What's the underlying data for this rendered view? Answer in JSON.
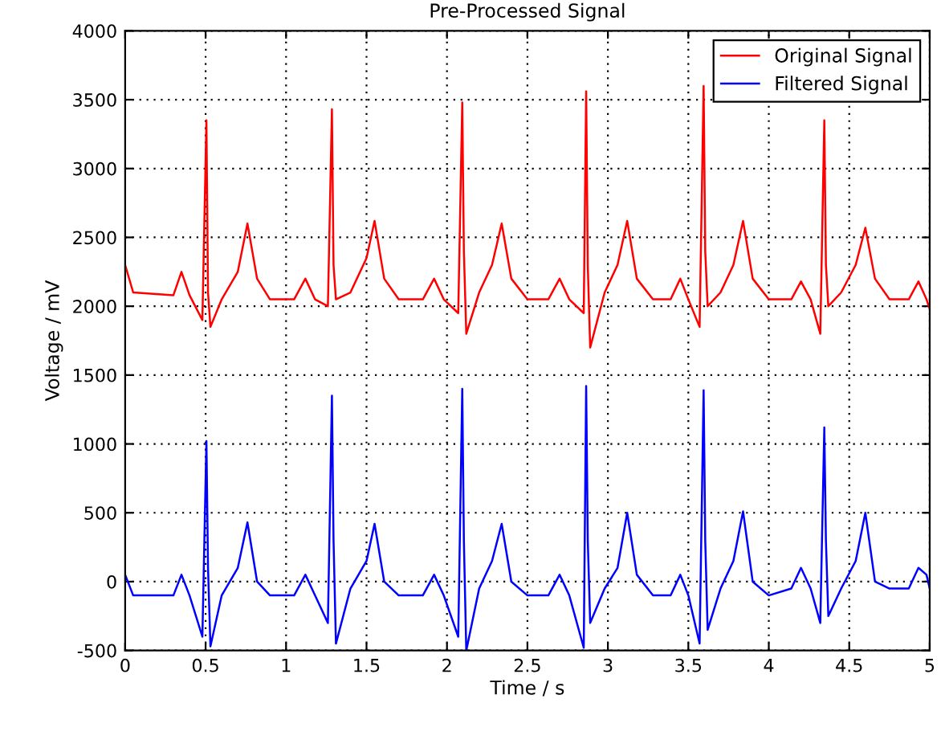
{
  "chart_data": {
    "type": "line",
    "title": "Pre-Processed Signal",
    "xlabel": "Time / s",
    "ylabel": "Voltage / mV",
    "x": [
      0,
      0.05,
      0.3,
      0.35,
      0.4,
      0.48,
      0.505,
      0.515,
      0.53,
      0.6,
      0.7,
      0.76,
      0.82,
      0.9,
      1.05,
      1.12,
      1.18,
      1.26,
      1.285,
      1.295,
      1.31,
      1.4,
      1.5,
      1.55,
      1.61,
      1.7,
      1.85,
      1.92,
      1.98,
      2.07,
      2.095,
      2.105,
      2.12,
      2.2,
      2.28,
      2.34,
      2.4,
      2.5,
      2.63,
      2.7,
      2.76,
      2.85,
      2.865,
      2.875,
      2.89,
      2.98,
      3.06,
      3.12,
      3.18,
      3.28,
      3.39,
      3.45,
      3.5,
      3.57,
      3.595,
      3.605,
      3.62,
      3.7,
      3.78,
      3.84,
      3.9,
      4.0,
      4.14,
      4.2,
      4.26,
      4.32,
      4.345,
      4.355,
      4.37,
      4.45,
      4.54,
      4.6,
      4.66,
      4.75,
      4.87,
      4.93,
      4.98,
      5.0
    ],
    "series": [
      {
        "name": "Original Signal",
        "color": "#ff0000",
        "values": [
          2300,
          2100,
          2080,
          2250,
          2080,
          1900,
          3350,
          2100,
          1850,
          2050,
          2250,
          2600,
          2200,
          2050,
          2050,
          2200,
          2050,
          2000,
          3430,
          2300,
          2050,
          2100,
          2350,
          2620,
          2200,
          2050,
          2050,
          2200,
          2050,
          1950,
          3480,
          2400,
          1800,
          2100,
          2300,
          2600,
          2200,
          2050,
          2050,
          2200,
          2050,
          1950,
          3560,
          2300,
          1700,
          2100,
          2300,
          2620,
          2200,
          2050,
          2050,
          2200,
          2050,
          1850,
          3600,
          2400,
          2000,
          2100,
          2300,
          2620,
          2200,
          2050,
          2050,
          2180,
          2050,
          1800,
          3350,
          2300,
          2000,
          2100,
          2300,
          2570,
          2200,
          2050,
          2050,
          2180,
          2050,
          1980
        ]
      },
      {
        "name": "Filtered Signal",
        "color": "#0000ff",
        "values": [
          50,
          -100,
          -100,
          50,
          -100,
          -400,
          1020,
          100,
          -470,
          -100,
          100,
          430,
          0,
          -100,
          -100,
          50,
          -100,
          -300,
          1350,
          300,
          -450,
          -50,
          150,
          420,
          0,
          -100,
          -100,
          50,
          -100,
          -400,
          1400,
          300,
          -500,
          -50,
          150,
          420,
          0,
          -100,
          -100,
          50,
          -100,
          -480,
          1420,
          300,
          -300,
          -50,
          100,
          500,
          50,
          -100,
          -100,
          50,
          -100,
          -450,
          1390,
          300,
          -350,
          -50,
          150,
          510,
          0,
          -100,
          -50,
          100,
          -50,
          -300,
          1120,
          300,
          -250,
          -50,
          150,
          500,
          0,
          -50,
          -50,
          100,
          50,
          -50
        ]
      }
    ],
    "xlim": [
      0,
      5
    ],
    "xticks": [
      0,
      0.5,
      1,
      1.5,
      2,
      2.5,
      3,
      3.5,
      4,
      4.5,
      5
    ],
    "ylim": [
      -500,
      4000
    ],
    "yticks": [
      -500,
      0,
      500,
      1000,
      1500,
      2000,
      2500,
      3000,
      3500,
      4000
    ],
    "grid": true,
    "legend": "top right",
    "line_style": "solid",
    "marker": "none"
  }
}
